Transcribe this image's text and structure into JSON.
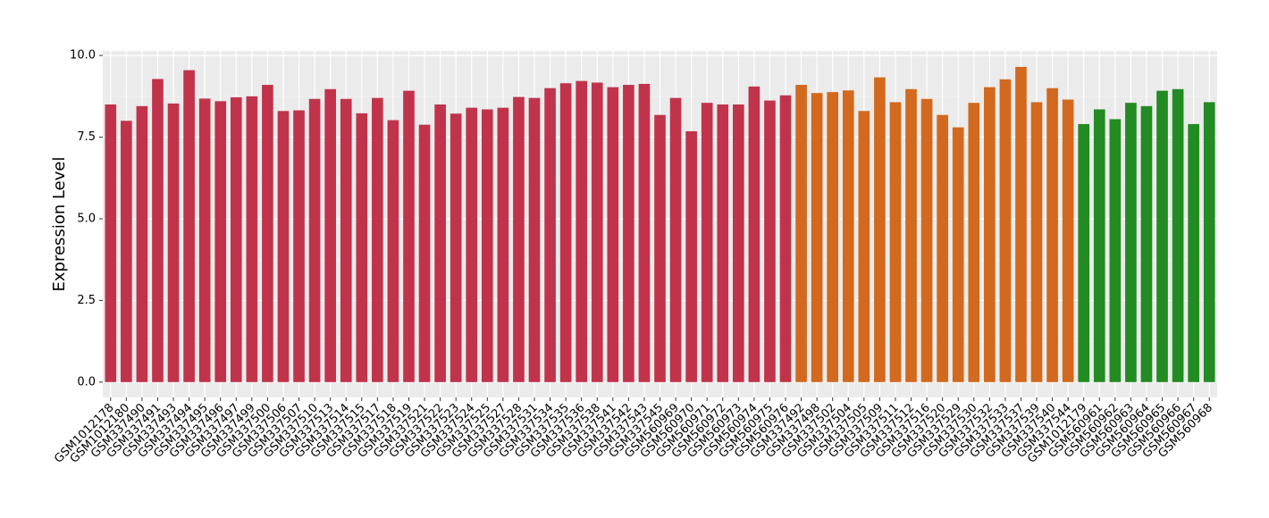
{
  "chart_data": {
    "type": "bar",
    "y_label": "Expression Level",
    "categories": [
      "GSM1012178",
      "GSM1012180",
      "GSM337490",
      "GSM337491",
      "GSM337493",
      "GSM337494",
      "GSM337495",
      "GSM337496",
      "GSM337497",
      "GSM337499",
      "GSM337500",
      "GSM337506",
      "GSM337507",
      "GSM337510",
      "GSM337513",
      "GSM337514",
      "GSM337515",
      "GSM337517",
      "GSM337518",
      "GSM337519",
      "GSM337521",
      "GSM337522",
      "GSM337523",
      "GSM337524",
      "GSM337525",
      "GSM337527",
      "GSM337528",
      "GSM337531",
      "GSM337534",
      "GSM337535",
      "GSM337536",
      "GSM337538",
      "GSM337541",
      "GSM337542",
      "GSM337543",
      "GSM337545",
      "GSM560969",
      "GSM560970",
      "GSM560971",
      "GSM560972",
      "GSM560973",
      "GSM560974",
      "GSM560975",
      "GSM560976",
      "GSM337492",
      "GSM337498",
      "GSM337502",
      "GSM337504",
      "GSM337505",
      "GSM337509",
      "GSM337511",
      "GSM337512",
      "GSM337516",
      "GSM337520",
      "GSM337529",
      "GSM337530",
      "GSM337532",
      "GSM337533",
      "GSM337537",
      "GSM337539",
      "GSM337540",
      "GSM337544",
      "GSM1012179",
      "GSM560961",
      "GSM560962",
      "GSM560963",
      "GSM560964",
      "GSM560965",
      "GSM560966",
      "GSM560967",
      "GSM560968"
    ],
    "values": [
      8.5,
      8.0,
      8.45,
      9.28,
      8.53,
      9.55,
      8.68,
      8.6,
      8.72,
      8.75,
      9.1,
      8.3,
      8.32,
      8.67,
      8.97,
      8.67,
      8.23,
      8.7,
      8.02,
      8.92,
      7.88,
      8.5,
      8.22,
      8.4,
      8.35,
      8.4,
      8.73,
      8.7,
      9.0,
      9.15,
      9.22,
      9.17,
      9.03,
      9.1,
      9.13,
      8.18,
      8.7,
      7.68,
      8.55,
      8.5,
      8.5,
      9.05,
      8.62,
      8.78,
      9.1,
      8.85,
      8.88,
      8.93,
      8.3,
      9.33,
      8.57,
      8.97,
      8.67,
      8.18,
      7.8,
      8.55,
      9.03,
      9.27,
      9.65,
      8.57,
      9.0,
      8.65,
      7.9,
      8.35,
      8.05,
      8.55,
      8.45,
      8.92,
      8.97,
      7.9,
      8.57
    ],
    "colors": [
      "#c1334b",
      "#c1334b",
      "#c1334b",
      "#c1334b",
      "#c1334b",
      "#c1334b",
      "#c1334b",
      "#c1334b",
      "#c1334b",
      "#c1334b",
      "#c1334b",
      "#c1334b",
      "#c1334b",
      "#c1334b",
      "#c1334b",
      "#c1334b",
      "#c1334b",
      "#c1334b",
      "#c1334b",
      "#c1334b",
      "#c1334b",
      "#c1334b",
      "#c1334b",
      "#c1334b",
      "#c1334b",
      "#c1334b",
      "#c1334b",
      "#c1334b",
      "#c1334b",
      "#c1334b",
      "#c1334b",
      "#c1334b",
      "#c1334b",
      "#c1334b",
      "#c1334b",
      "#c1334b",
      "#c1334b",
      "#c1334b",
      "#c1334b",
      "#c1334b",
      "#c1334b",
      "#c1334b",
      "#c1334b",
      "#c1334b",
      "#d2691e",
      "#d2691e",
      "#d2691e",
      "#d2691e",
      "#d2691e",
      "#d2691e",
      "#d2691e",
      "#d2691e",
      "#d2691e",
      "#d2691e",
      "#d2691e",
      "#d2691e",
      "#d2691e",
      "#d2691e",
      "#d2691e",
      "#d2691e",
      "#d2691e",
      "#d2691e",
      "#228b22",
      "#228b22",
      "#228b22",
      "#228b22",
      "#228b22",
      "#228b22",
      "#228b22",
      "#228b22",
      "#228b22"
    ],
    "ylim": [
      -0.47,
      10.14
    ],
    "yticks": [
      {
        "value": 0,
        "label": "0.0"
      },
      2.5,
      {
        "value": 5,
        "label": "5.0"
      },
      7.5,
      {
        "value": 10,
        "label": "10.0"
      }
    ],
    "grid": true
  }
}
